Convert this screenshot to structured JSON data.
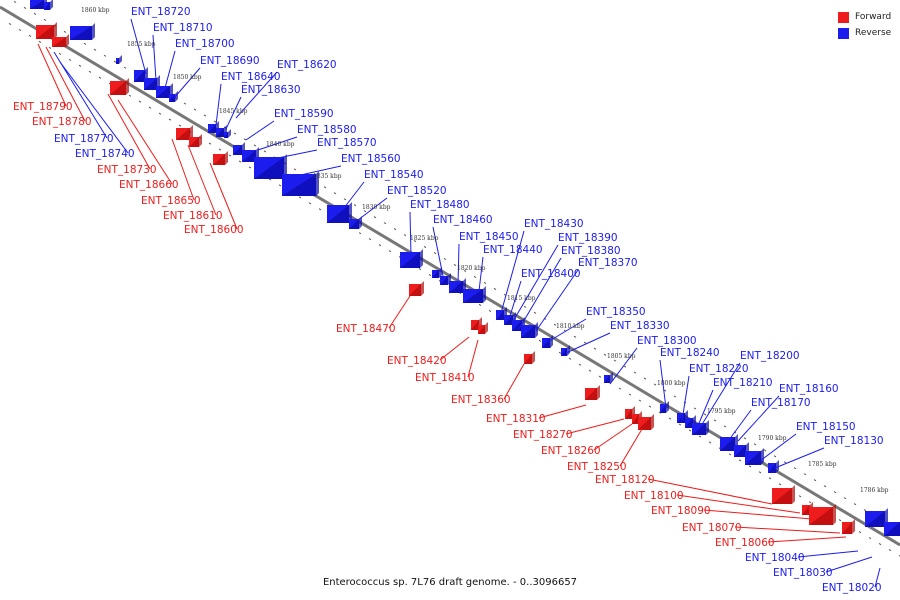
{
  "caption": "Enterococcus sp. 7L76 draft genome. - 0..3096657",
  "legend": [
    {
      "label": "Forward",
      "color": "#ee1c1c"
    },
    {
      "label": "Reverse",
      "color": "#1c1cee"
    }
  ],
  "colors": {
    "forward": "#ee1c1c",
    "reverse": "#1c1cee",
    "backbone": "#777777"
  },
  "scale_labels": [
    "1860 kbp",
    "1855 kbp",
    "1850 kbp",
    "1845 kbp",
    "1840 kbp",
    "1835 kbp",
    "1830 kbp",
    "1825 kbp",
    "1820 kbp",
    "1815 kbp",
    "1810 kbp",
    "1805 kbp",
    "1800 kbp",
    "1795 kbp",
    "1790 kbp",
    "1785 kbp",
    "1786 kbp"
  ],
  "genes": [
    {
      "name": "ENT_18720",
      "strand": "reverse"
    },
    {
      "name": "ENT_18710",
      "strand": "reverse"
    },
    {
      "name": "ENT_18700",
      "strand": "reverse"
    },
    {
      "name": "ENT_18690",
      "strand": "reverse"
    },
    {
      "name": "ENT_18640",
      "strand": "reverse"
    },
    {
      "name": "ENT_18620",
      "strand": "reverse"
    },
    {
      "name": "ENT_18630",
      "strand": "reverse"
    },
    {
      "name": "ENT_18590",
      "strand": "reverse"
    },
    {
      "name": "ENT_18580",
      "strand": "reverse"
    },
    {
      "name": "ENT_18570",
      "strand": "reverse"
    },
    {
      "name": "ENT_18560",
      "strand": "reverse"
    },
    {
      "name": "ENT_18540",
      "strand": "reverse"
    },
    {
      "name": "ENT_18520",
      "strand": "reverse"
    },
    {
      "name": "ENT_18480",
      "strand": "reverse"
    },
    {
      "name": "ENT_18460",
      "strand": "reverse"
    },
    {
      "name": "ENT_18450",
      "strand": "reverse"
    },
    {
      "name": "ENT_18440",
      "strand": "reverse"
    },
    {
      "name": "ENT_18430",
      "strand": "reverse"
    },
    {
      "name": "ENT_18390",
      "strand": "reverse"
    },
    {
      "name": "ENT_18380",
      "strand": "reverse"
    },
    {
      "name": "ENT_18370",
      "strand": "reverse"
    },
    {
      "name": "ENT_18400",
      "strand": "reverse"
    },
    {
      "name": "ENT_18350",
      "strand": "reverse"
    },
    {
      "name": "ENT_18330",
      "strand": "reverse"
    },
    {
      "name": "ENT_18300",
      "strand": "reverse"
    },
    {
      "name": "ENT_18240",
      "strand": "reverse"
    },
    {
      "name": "ENT_18200",
      "strand": "reverse"
    },
    {
      "name": "ENT_18220",
      "strand": "reverse"
    },
    {
      "name": "ENT_18210",
      "strand": "reverse"
    },
    {
      "name": "ENT_18160",
      "strand": "reverse"
    },
    {
      "name": "ENT_18170",
      "strand": "reverse"
    },
    {
      "name": "ENT_18150",
      "strand": "reverse"
    },
    {
      "name": "ENT_18130",
      "strand": "reverse"
    },
    {
      "name": "ENT_18790",
      "strand": "forward"
    },
    {
      "name": "ENT_18780",
      "strand": "forward"
    },
    {
      "name": "ENT_18770",
      "strand": "reverse"
    },
    {
      "name": "ENT_18740",
      "strand": "reverse"
    },
    {
      "name": "ENT_18730",
      "strand": "forward"
    },
    {
      "name": "ENT_18660",
      "strand": "forward"
    },
    {
      "name": "ENT_18650",
      "strand": "forward"
    },
    {
      "name": "ENT_18610",
      "strand": "forward"
    },
    {
      "name": "ENT_18600",
      "strand": "forward"
    },
    {
      "name": "ENT_18470",
      "strand": "forward"
    },
    {
      "name": "ENT_18420",
      "strand": "forward"
    },
    {
      "name": "ENT_18410",
      "strand": "forward"
    },
    {
      "name": "ENT_18360",
      "strand": "forward"
    },
    {
      "name": "ENT_18310",
      "strand": "forward"
    },
    {
      "name": "ENT_18270",
      "strand": "forward"
    },
    {
      "name": "ENT_18260",
      "strand": "forward"
    },
    {
      "name": "ENT_18250",
      "strand": "forward"
    },
    {
      "name": "ENT_18120",
      "strand": "forward"
    },
    {
      "name": "ENT_18100",
      "strand": "forward"
    },
    {
      "name": "ENT_18090",
      "strand": "forward"
    },
    {
      "name": "ENT_18070",
      "strand": "forward"
    },
    {
      "name": "ENT_18060",
      "strand": "forward"
    },
    {
      "name": "ENT_18040",
      "strand": "reverse"
    },
    {
      "name": "ENT_18030",
      "strand": "reverse"
    },
    {
      "name": "ENT_18020",
      "strand": "reverse"
    }
  ]
}
